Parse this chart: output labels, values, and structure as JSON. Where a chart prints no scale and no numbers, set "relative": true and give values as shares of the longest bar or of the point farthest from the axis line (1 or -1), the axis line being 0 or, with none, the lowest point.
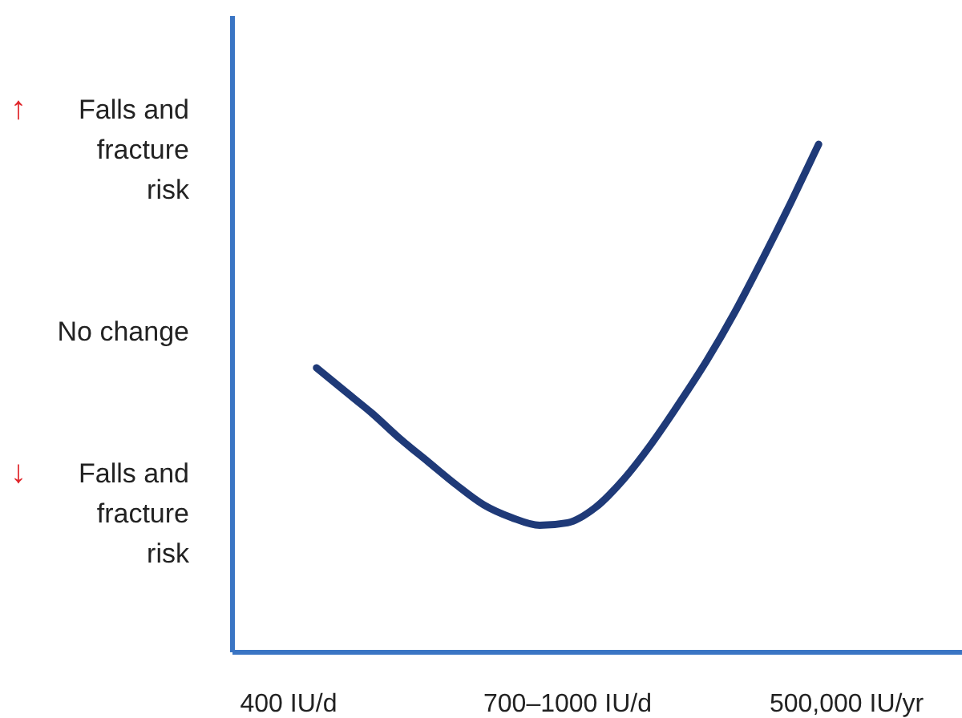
{
  "chart_data": {
    "type": "line",
    "relative": true,
    "categories": [
      "400 IU/d",
      null,
      null,
      null,
      null,
      null,
      null,
      null,
      null,
      null,
      "700–1000 IU/d",
      null,
      null,
      null,
      null,
      null,
      null,
      null,
      null,
      null,
      "500,000 IU/yr"
    ],
    "annotations": [
      "↑ Falls and fracture risk",
      "No change",
      "↓ Falls and fracture risk"
    ],
    "marker": "none",
    "line_style": "solid",
    "series": [
      {
        "color": "#1f3a78",
        "values": [
          null,
          0.56,
          0.515,
          0.47,
          0.42,
          0.375,
          0.33,
          0.29,
          0.265,
          0.25,
          0.255,
          0.285,
          0.34,
          0.41,
          0.49,
          0.575,
          0.67,
          0.775,
          0.885,
          1,
          null
        ]
      }
    ]
  }
}
